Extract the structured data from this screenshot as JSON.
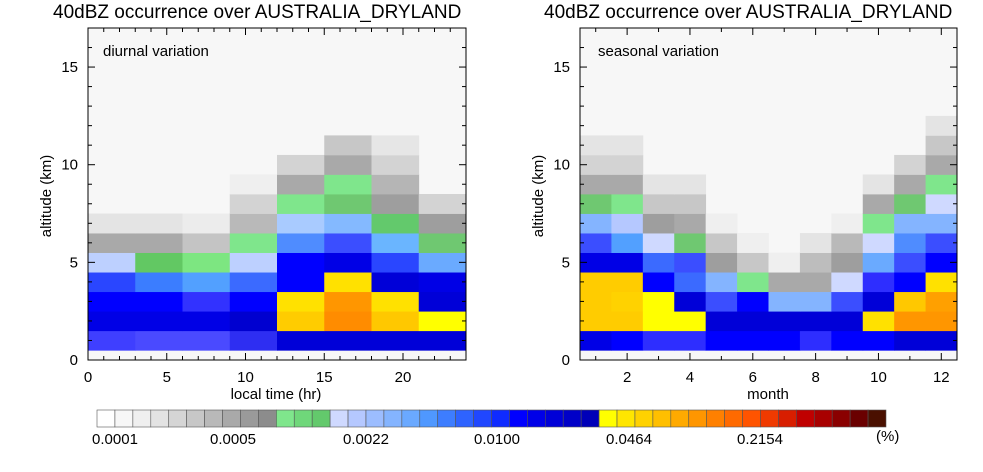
{
  "palette": [
    "#ffffff",
    "#f7f7f7",
    "#efefef",
    "#e3e3e3",
    "#d5d5d5",
    "#c7c7c7",
    "#b9b9b9",
    "#a9a9a9",
    "#9a9a9a",
    "#8c8c8c",
    "#7fe68c",
    "#6fd77a",
    "#63c96c",
    "#cfd9ff",
    "#b5c8ff",
    "#9cbdff",
    "#84b4ff",
    "#6aa9ff",
    "#4f98ff",
    "#3d7dff",
    "#2e63ff",
    "#2047ff",
    "#0f2bff",
    "#0000ff",
    "#0000e8",
    "#0000d8",
    "#0000c8",
    "#0000b8",
    "#ffff00",
    "#ffe600",
    "#ffd200",
    "#ffbf00",
    "#ffaa00",
    "#ff9600",
    "#ff8000",
    "#ff6a00",
    "#ff5400",
    "#f03a00",
    "#d81e00",
    "#c00000",
    "#a80000",
    "#8a0000",
    "#6a0000",
    "#4a1000"
  ],
  "colorbar": {
    "tick_labels": [
      "0.0001",
      "0.0005",
      "0.0022",
      "0.0100",
      "0.0464",
      "0.2154"
    ],
    "unit": "(%)"
  },
  "chart_data": [
    {
      "type": "heatmap",
      "title": "40dBZ occurrence over AUSTRALIA_DRYLAND",
      "inset_label": "diurnal variation",
      "xlabel": "local time (hr)",
      "ylabel": "altitude (km)",
      "xlim": [
        0,
        24
      ],
      "ylim": [
        0,
        17
      ],
      "xticks": [
        0,
        5,
        10,
        15,
        20
      ],
      "yticks": [
        0,
        5,
        10,
        15
      ],
      "x_bins": [
        [
          0,
          3
        ],
        [
          3,
          6
        ],
        [
          6,
          9
        ],
        [
          9,
          12
        ],
        [
          12,
          15
        ],
        [
          15,
          18
        ],
        [
          18,
          21
        ],
        [
          21,
          24
        ]
      ],
      "y_bins": [
        [
          0.5,
          1.5
        ],
        [
          1.5,
          2.5
        ],
        [
          2.5,
          3.5
        ],
        [
          3.5,
          4.5
        ],
        [
          4.5,
          5.5
        ],
        [
          5.5,
          6.5
        ],
        [
          6.5,
          7.5
        ],
        [
          7.5,
          8.5
        ],
        [
          8.5,
          9.5
        ],
        [
          9.5,
          10.5
        ],
        [
          10.5,
          11.5
        ]
      ],
      "background_color": "#f7f7f7",
      "cells": [
        [
          "#3f3fff",
          "#4a4aff",
          "#4a4aff",
          "#2e2ef2",
          "#0000d8",
          "#0000d8",
          "#0000d8",
          "#0000d8"
        ],
        [
          "#0000e6",
          "#0000e6",
          "#0000e6",
          "#0000d0",
          "#ffcc00",
          "#ff8c00",
          "#ffc800",
          "#ffff00"
        ],
        [
          "#0000ff",
          "#0000ff",
          "#3232ff",
          "#0000ff",
          "#ffe100",
          "#ff9600",
          "#ffe100",
          "#0000d8"
        ],
        [
          "#2a46ff",
          "#3b7dff",
          "#52a0ff",
          "#3b6aff",
          "#0000ff",
          "#ffe100",
          "#0000d8",
          "#0000e6"
        ],
        [
          "#bdd0ff",
          "#62c863",
          "#7de681",
          "#bdd0ff",
          "#0000ff",
          "#0000e6",
          "#2a46ff",
          "#6aaaff"
        ],
        [
          "#a9a9a9",
          "#a9a9a9",
          "#c4c4c4",
          "#7fe68c",
          "#4f8cff",
          "#3b4eff",
          "#6ab5ff",
          "#6fc871"
        ],
        [
          "#e4e4e4",
          "#e4e4e4",
          "#ececec",
          "#b9b9b9",
          "#a9cbff",
          "#84b9ff",
          "#63c96c",
          "#9e9e9e"
        ],
        [
          "",
          "",
          "",
          "#d3d3d3",
          "#7fe68c",
          "#6fc871",
          "#9e9e9e",
          "#d3d3d3"
        ],
        [
          "",
          "",
          "",
          "#efefef",
          "#a9a9a9",
          "#7fe68c",
          "#b5b5b5",
          ""
        ],
        [
          "",
          "",
          "",
          "",
          "#d3d3d3",
          "#a9a9a9",
          "#d3d3d3",
          ""
        ],
        [
          "",
          "",
          "",
          "",
          "",
          "#c7c7c7",
          "#e6e6e6",
          ""
        ]
      ]
    },
    {
      "type": "heatmap",
      "title": "40dBZ occurrence over AUSTRALIA_DRYLAND",
      "inset_label": "seasonal variation",
      "xlabel": "month",
      "ylabel": "altitude (km)",
      "xlim": [
        0.5,
        12.5
      ],
      "ylim": [
        0,
        17
      ],
      "xticks": [
        2,
        4,
        6,
        8,
        10,
        12
      ],
      "yticks": [
        0,
        5,
        10,
        15
      ],
      "x_bins": [
        [
          0.5,
          1.5
        ],
        [
          1.5,
          2.5
        ],
        [
          2.5,
          3.5
        ],
        [
          3.5,
          4.5
        ],
        [
          4.5,
          5.5
        ],
        [
          5.5,
          6.5
        ],
        [
          6.5,
          7.5
        ],
        [
          7.5,
          8.5
        ],
        [
          8.5,
          9.5
        ],
        [
          9.5,
          10.5
        ],
        [
          10.5,
          11.5
        ],
        [
          11.5,
          12.5
        ]
      ],
      "y_bins": [
        [
          0.5,
          1.5
        ],
        [
          1.5,
          2.5
        ],
        [
          2.5,
          3.5
        ],
        [
          3.5,
          4.5
        ],
        [
          4.5,
          5.5
        ],
        [
          5.5,
          6.5
        ],
        [
          6.5,
          7.5
        ],
        [
          7.5,
          8.5
        ],
        [
          8.5,
          9.5
        ],
        [
          9.5,
          10.5
        ],
        [
          10.5,
          11.5
        ],
        [
          11.5,
          12.5
        ]
      ],
      "background_color": "#f7f7f7",
      "cells": [
        [
          "#0000e6",
          "#0000ff",
          "#2e2eff",
          "#2e2eff",
          "#0000ff",
          "#0000ff",
          "#0000ff",
          "#2e2eff",
          "#0000ff",
          "#0000ff",
          "#0000d8",
          "#0000d8"
        ],
        [
          "#ffcc00",
          "#ffcc00",
          "#ffff00",
          "#ffff00",
          "#0000d8",
          "#0000d8",
          "#0000d8",
          "#0000d8",
          "#0000d8",
          "#ffe100",
          "#ff9600",
          "#ff9600"
        ],
        [
          "#ffcc00",
          "#ffd200",
          "#ffff00",
          "#0000d8",
          "#3b4eff",
          "#0000ff",
          "#84b4ff",
          "#84b4ff",
          "#3b4eff",
          "#0000d8",
          "#ffc800",
          "#ffa000"
        ],
        [
          "#ffcc00",
          "#ffcc00",
          "#0000ff",
          "#3b6aff",
          "#84b4ff",
          "#7fe68c",
          "#a9a9a9",
          "#a9a9a9",
          "#cfd9ff",
          "#2e2eff",
          "#0000ff",
          "#ffe100"
        ],
        [
          "#0000e6",
          "#0000e6",
          "#3b6aff",
          "#3b4eff",
          "#9e9e9e",
          "#c7c7c7",
          "#efefef",
          "#bdbdbd",
          "#9e9e9e",
          "#6aaaff",
          "#3b4eff",
          "#0000ff"
        ],
        [
          "#3b4eff",
          "#52a0ff",
          "#cfd9ff",
          "#6fc871",
          "#c7c7c7",
          "#efefef",
          "",
          "#e4e4e4",
          "#b9b9b9",
          "#cfd9ff",
          "#4f8cff",
          "#3b4eff"
        ],
        [
          "#84b4ff",
          "#b5c8ff",
          "#9e9e9e",
          "#a9a9a9",
          "#efefef",
          "",
          "",
          "",
          "#efefef",
          "#7fe68c",
          "#84b4ff",
          "#84b4ff"
        ],
        [
          "#6fc871",
          "#7fe68c",
          "#c7c7c7",
          "#c7c7c7",
          "",
          "",
          "",
          "",
          "",
          "#a9a9a9",
          "#6fc871",
          "#cfd9ff"
        ],
        [
          "#a9a9a9",
          "#a9a9a9",
          "#e4e4e4",
          "#e4e4e4",
          "",
          "",
          "",
          "",
          "",
          "#e4e4e4",
          "#a9a9a9",
          "#7fe68c"
        ],
        [
          "#d3d3d3",
          "#d3d3d3",
          "",
          "",
          "",
          "",
          "",
          "",
          "",
          "",
          "#d3d3d3",
          "#a9a9a9"
        ],
        [
          "#e4e4e4",
          "#e4e4e4",
          "",
          "",
          "",
          "",
          "",
          "",
          "",
          "",
          "",
          "#c7c7c7"
        ],
        [
          "",
          "",
          "",
          "",
          "",
          "",
          "",
          "",
          "",
          "",
          "",
          "#e4e4e4"
        ]
      ]
    }
  ]
}
